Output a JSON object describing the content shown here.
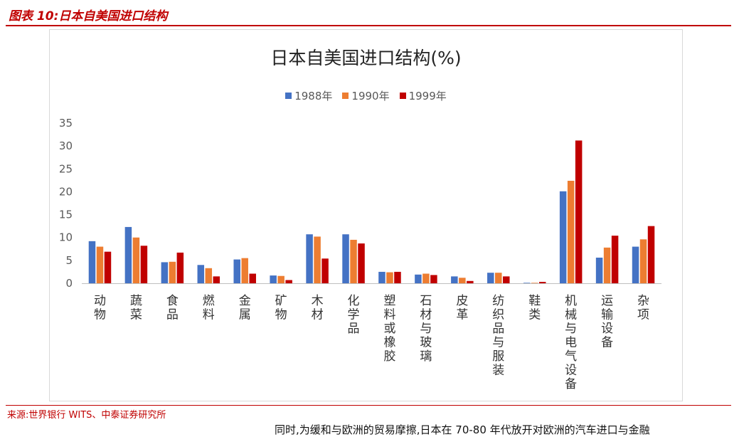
{
  "figure_label": "图表 10:日本自美国进口结构",
  "source_text": "来源:世界银行 WITS、中泰证券研究所",
  "body_text_fragment": "同时,为缓和与欧洲的贸易摩擦,日本在 70-80 年代放开对欧洲的汽车进口与金融",
  "colors": {
    "s1988": "#4472c4",
    "s1990": "#ed7d31",
    "s1999": "#c00000",
    "accent": "#c00000"
  },
  "chart_data": {
    "type": "bar",
    "title": "日本自美国进口结构(%)",
    "xlabel": "",
    "ylabel": "",
    "ylim": [
      0,
      35
    ],
    "yticks": [
      0,
      5,
      10,
      15,
      20,
      25,
      30,
      35
    ],
    "grid": false,
    "legend_position": "top",
    "categories": [
      "动物",
      "蔬菜",
      "食品",
      "燃料",
      "金属",
      "矿物",
      "木材",
      "化学品",
      "塑料或橡胶",
      "石材与玻璃",
      "皮革",
      "纺织品与服装",
      "鞋类",
      "机械与电气设备",
      "运输设备",
      "杂项"
    ],
    "series": [
      {
        "name": "1988年",
        "color": "#4472c4",
        "values": [
          9.2,
          12.3,
          4.6,
          4.0,
          5.2,
          1.7,
          10.7,
          10.7,
          2.5,
          1.9,
          1.5,
          2.3,
          0.1,
          20.1,
          5.6,
          8.0
        ]
      },
      {
        "name": "1990年",
        "color": "#ed7d31",
        "values": [
          8.0,
          10.0,
          4.7,
          3.3,
          5.5,
          1.6,
          10.2,
          9.5,
          2.4,
          2.1,
          1.2,
          2.3,
          0.1,
          22.4,
          7.8,
          9.6
        ]
      },
      {
        "name": "1999年",
        "color": "#c00000",
        "values": [
          6.9,
          8.2,
          6.7,
          1.5,
          2.1,
          0.7,
          5.4,
          8.7,
          2.5,
          1.8,
          0.5,
          1.5,
          0.3,
          31.2,
          10.4,
          12.5
        ]
      }
    ]
  }
}
